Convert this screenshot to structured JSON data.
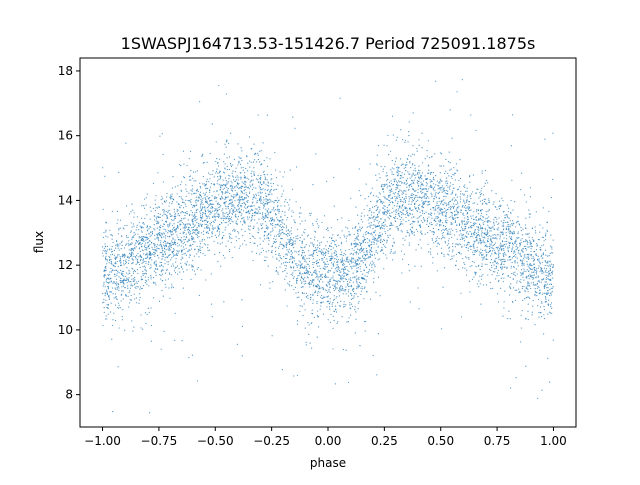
{
  "chart_data": {
    "type": "scatter",
    "title": "1SWASPJ164713.53-151426.7 Period 725091.1875s",
    "xlabel": "phase",
    "ylabel": "flux",
    "xlim": [
      -1.1,
      1.1
    ],
    "ylim": [
      7.0,
      18.4
    ],
    "xticks": [
      -1.0,
      -0.75,
      -0.5,
      -0.25,
      0.0,
      0.25,
      0.5,
      0.75,
      1.0
    ],
    "xtick_labels": [
      "−1.00",
      "−0.75",
      "−0.50",
      "−0.25",
      "0.00",
      "0.25",
      "0.50",
      "0.75",
      "1.00"
    ],
    "yticks": [
      8,
      10,
      12,
      14,
      16,
      18
    ],
    "ytick_labels": [
      "8",
      "10",
      "12",
      "14",
      "16",
      "18"
    ],
    "grid": false,
    "legend": "none",
    "marker_color": "#1f77b4",
    "series": [
      {
        "trend": {
          "x": [
            0.0,
            0.05,
            0.1,
            0.15,
            0.2,
            0.25,
            0.3,
            0.35,
            0.4,
            0.45,
            0.5,
            0.55,
            0.6,
            0.65,
            0.7,
            0.75,
            0.8,
            0.85,
            0.9,
            0.95,
            1.0
          ],
          "y": [
            11.7,
            11.8,
            11.9,
            12.3,
            12.9,
            13.6,
            14.0,
            14.1,
            14.1,
            14.0,
            13.8,
            13.6,
            13.4,
            13.1,
            12.9,
            12.7,
            12.5,
            12.3,
            12.0,
            11.8,
            11.7
          ]
        },
        "scatter_sigma": 0.75,
        "n_points": 6000
      }
    ]
  }
}
